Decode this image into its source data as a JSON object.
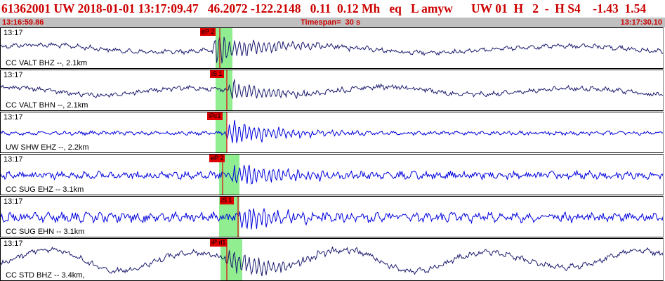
{
  "header": {
    "title": "61362001 UW 2018-01-01 13:17:09.47   46.2072 -122.2148   0.11  0.12 Mh   eq   L amyw      UW 01  H   2  -  H S4    -1.43  1.54",
    "start_time": "13:16:59.86",
    "timespan": "Timespan=  30 s",
    "end_time": "13:17:30.10"
  },
  "colors": {
    "trace_dark": "#1a1a6e",
    "trace_blue": "#0000dd",
    "pick_window": "#90ee90",
    "pick_line": "#e00000",
    "pick_tag": "#e00000",
    "header_text": "#cc0000",
    "time_bar": "#c0c0c0"
  },
  "panels": [
    {
      "time": "13:17",
      "label": "CC VALT BHZ --, 2.1km",
      "pick": "eP 2",
      "trace_color": "dark"
    },
    {
      "time": "13:17",
      "label": "CC VALT BHN --, 2.1km",
      "pick": "iS 1",
      "trace_color": "dark"
    },
    {
      "time": "13:17",
      "label": "UW SHW EHZ --, 2.2km",
      "pick": "iPc1",
      "trace_color": "blue"
    },
    {
      "time": "13:17",
      "label": "CC SUG EHZ -- 3.1km",
      "pick": "eP 2",
      "trace_color": "blue"
    },
    {
      "time": "13:17",
      "label": "CC SUG EHN -- 3.1km",
      "pick": "iS 1",
      "trace_color": "blue"
    },
    {
      "time": "13:17",
      "label": "CC STD BHZ -- 3.4km,",
      "pick": "iP d1",
      "trace_color": "dark"
    }
  ]
}
